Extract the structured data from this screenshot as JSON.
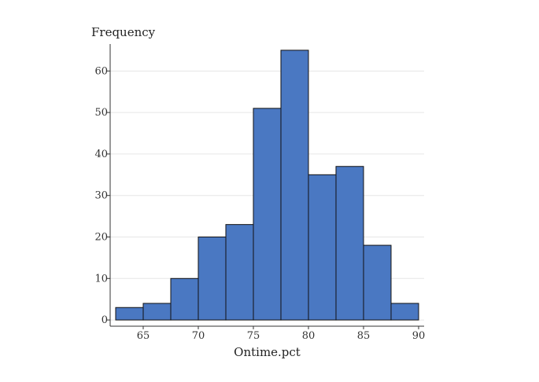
{
  "chart_data": {
    "type": "bar",
    "title": "",
    "xlabel": "Ontime.pct",
    "ylabel": "Frequency",
    "bin_width": 2.5,
    "bins": [
      {
        "start": 62.5,
        "end": 65.0,
        "count": 3
      },
      {
        "start": 65.0,
        "end": 67.5,
        "count": 4
      },
      {
        "start": 67.5,
        "end": 70.0,
        "count": 10
      },
      {
        "start": 70.0,
        "end": 72.5,
        "count": 20
      },
      {
        "start": 72.5,
        "end": 75.0,
        "count": 23
      },
      {
        "start": 75.0,
        "end": 77.5,
        "count": 51
      },
      {
        "start": 77.5,
        "end": 80.0,
        "count": 65
      },
      {
        "start": 80.0,
        "end": 82.5,
        "count": 35
      },
      {
        "start": 82.5,
        "end": 85.0,
        "count": 37
      },
      {
        "start": 85.0,
        "end": 87.5,
        "count": 18
      },
      {
        "start": 87.5,
        "end": 90.0,
        "count": 4
      }
    ],
    "xlim": [
      62.0,
      90.5
    ],
    "ylim": [
      -1.5,
      66.5
    ],
    "x_ticks": [
      65,
      70,
      75,
      80,
      85,
      90
    ],
    "y_ticks": [
      0,
      10,
      20,
      30,
      40,
      50,
      60
    ],
    "bar_color": "#4a78c2",
    "grid": "horizontal",
    "legend": "none"
  }
}
